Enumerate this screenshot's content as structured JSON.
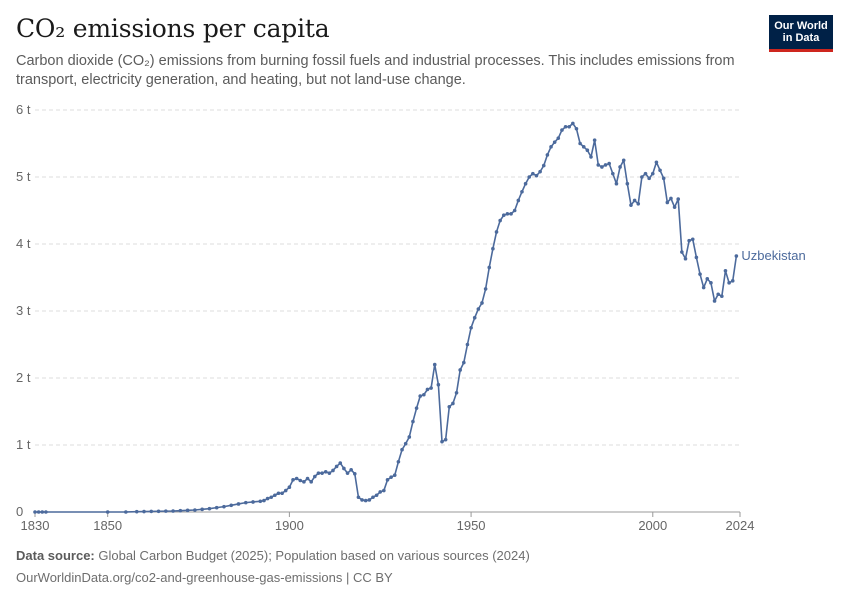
{
  "header": {
    "title": "CO₂ emissions per capita",
    "subtitle": "Carbon dioxide (CO₂) emissions from burning fossil fuels and industrial processes. This includes emissions from transport, electricity generation, and heating, but not land-use change."
  },
  "logo": {
    "line1": "Our World",
    "line2": "in Data"
  },
  "footer": {
    "source_label": "Data source:",
    "source_text": " Global Carbon Budget (2025); Population based on various sources (2024)",
    "link_text": "OurWorldinData.org/co2-and-greenhouse-gas-emissions | CC BY"
  },
  "colors": {
    "series": "#4c6a9c",
    "grid": "#dddddd",
    "axis": "#666666",
    "logo_bg": "#002147",
    "logo_accent": "#ce261e"
  },
  "chart_data": {
    "type": "line",
    "xlim": [
      1830,
      2024
    ],
    "ylim": [
      0,
      6
    ],
    "x_ticks": [
      1830,
      1850,
      1900,
      1950,
      2000,
      2024
    ],
    "y_ticks": [
      {
        "value": 0,
        "label": "0"
      },
      {
        "value": 1,
        "label": "1 t"
      },
      {
        "value": 2,
        "label": "2 t"
      },
      {
        "value": 3,
        "label": "3 t"
      },
      {
        "value": 4,
        "label": "4 t"
      },
      {
        "value": 5,
        "label": "5 t"
      },
      {
        "value": 6,
        "label": "6 t"
      }
    ],
    "grid": true,
    "series": [
      {
        "name": "Uzbekistan",
        "points": [
          [
            1830,
            0
          ],
          [
            1831,
            0
          ],
          [
            1832,
            0
          ],
          [
            1833,
            0
          ],
          [
            1850,
            0
          ],
          [
            1855,
            0
          ],
          [
            1858,
            0.005
          ],
          [
            1860,
            0.007
          ],
          [
            1862,
            0.009
          ],
          [
            1864,
            0.011
          ],
          [
            1866,
            0.013
          ],
          [
            1868,
            0.015
          ],
          [
            1870,
            0.02
          ],
          [
            1872,
            0.025
          ],
          [
            1874,
            0.03
          ],
          [
            1876,
            0.04
          ],
          [
            1878,
            0.05
          ],
          [
            1880,
            0.065
          ],
          [
            1882,
            0.08
          ],
          [
            1884,
            0.1
          ],
          [
            1886,
            0.12
          ],
          [
            1888,
            0.14
          ],
          [
            1890,
            0.15
          ],
          [
            1892,
            0.16
          ],
          [
            1893,
            0.17
          ],
          [
            1894,
            0.2
          ],
          [
            1895,
            0.22
          ],
          [
            1896,
            0.25
          ],
          [
            1897,
            0.28
          ],
          [
            1898,
            0.28
          ],
          [
            1899,
            0.32
          ],
          [
            1900,
            0.37
          ],
          [
            1901,
            0.48
          ],
          [
            1902,
            0.5
          ],
          [
            1903,
            0.47
          ],
          [
            1904,
            0.45
          ],
          [
            1905,
            0.5
          ],
          [
            1906,
            0.45
          ],
          [
            1907,
            0.53
          ],
          [
            1908,
            0.58
          ],
          [
            1909,
            0.58
          ],
          [
            1910,
            0.6
          ],
          [
            1911,
            0.58
          ],
          [
            1912,
            0.62
          ],
          [
            1913,
            0.68
          ],
          [
            1914,
            0.73
          ],
          [
            1915,
            0.65
          ],
          [
            1916,
            0.58
          ],
          [
            1917,
            0.63
          ],
          [
            1918,
            0.57
          ],
          [
            1919,
            0.22
          ],
          [
            1920,
            0.18
          ],
          [
            1921,
            0.17
          ],
          [
            1922,
            0.18
          ],
          [
            1923,
            0.22
          ],
          [
            1924,
            0.25
          ],
          [
            1925,
            0.3
          ],
          [
            1926,
            0.32
          ],
          [
            1927,
            0.48
          ],
          [
            1928,
            0.52
          ],
          [
            1929,
            0.55
          ],
          [
            1930,
            0.75
          ],
          [
            1931,
            0.93
          ],
          [
            1932,
            1.02
          ],
          [
            1933,
            1.12
          ],
          [
            1934,
            1.35
          ],
          [
            1935,
            1.55
          ],
          [
            1936,
            1.73
          ],
          [
            1937,
            1.75
          ],
          [
            1938,
            1.83
          ],
          [
            1939,
            1.85
          ],
          [
            1940,
            2.2
          ],
          [
            1941,
            1.9
          ],
          [
            1942,
            1.05
          ],
          [
            1943,
            1.08
          ],
          [
            1944,
            1.57
          ],
          [
            1945,
            1.62
          ],
          [
            1946,
            1.78
          ],
          [
            1947,
            2.12
          ],
          [
            1948,
            2.23
          ],
          [
            1949,
            2.5
          ],
          [
            1950,
            2.75
          ],
          [
            1951,
            2.9
          ],
          [
            1952,
            3.03
          ],
          [
            1953,
            3.12
          ],
          [
            1954,
            3.33
          ],
          [
            1955,
            3.65
          ],
          [
            1956,
            3.93
          ],
          [
            1957,
            4.18
          ],
          [
            1958,
            4.35
          ],
          [
            1959,
            4.43
          ],
          [
            1960,
            4.45
          ],
          [
            1961,
            4.45
          ],
          [
            1962,
            4.5
          ],
          [
            1963,
            4.65
          ],
          [
            1964,
            4.78
          ],
          [
            1965,
            4.9
          ],
          [
            1966,
            5.0
          ],
          [
            1967,
            5.05
          ],
          [
            1968,
            5.02
          ],
          [
            1969,
            5.08
          ],
          [
            1970,
            5.17
          ],
          [
            1971,
            5.33
          ],
          [
            1972,
            5.45
          ],
          [
            1973,
            5.52
          ],
          [
            1974,
            5.58
          ],
          [
            1975,
            5.7
          ],
          [
            1976,
            5.75
          ],
          [
            1977,
            5.75
          ],
          [
            1978,
            5.8
          ],
          [
            1979,
            5.72
          ],
          [
            1980,
            5.5
          ],
          [
            1981,
            5.45
          ],
          [
            1982,
            5.4
          ],
          [
            1983,
            5.3
          ],
          [
            1984,
            5.55
          ],
          [
            1985,
            5.18
          ],
          [
            1986,
            5.15
          ],
          [
            1987,
            5.18
          ],
          [
            1988,
            5.2
          ],
          [
            1989,
            5.05
          ],
          [
            1990,
            4.9
          ],
          [
            1991,
            5.15
          ],
          [
            1992,
            5.25
          ],
          [
            1993,
            4.9
          ],
          [
            1994,
            4.58
          ],
          [
            1995,
            4.65
          ],
          [
            1996,
            4.6
          ],
          [
            1997,
            5.0
          ],
          [
            1998,
            5.05
          ],
          [
            1999,
            4.98
          ],
          [
            2000,
            5.05
          ],
          [
            2001,
            5.22
          ],
          [
            2002,
            5.1
          ],
          [
            2003,
            4.98
          ],
          [
            2004,
            4.62
          ],
          [
            2005,
            4.68
          ],
          [
            2006,
            4.55
          ],
          [
            2007,
            4.67
          ],
          [
            2008,
            3.88
          ],
          [
            2009,
            3.78
          ],
          [
            2010,
            4.05
          ],
          [
            2011,
            4.07
          ],
          [
            2012,
            3.8
          ],
          [
            2013,
            3.55
          ],
          [
            2014,
            3.35
          ],
          [
            2015,
            3.48
          ],
          [
            2016,
            3.42
          ],
          [
            2017,
            3.15
          ],
          [
            2018,
            3.25
          ],
          [
            2019,
            3.22
          ],
          [
            2020,
            3.6
          ],
          [
            2021,
            3.42
          ],
          [
            2022,
            3.45
          ],
          [
            2023,
            3.82
          ]
        ]
      }
    ]
  }
}
